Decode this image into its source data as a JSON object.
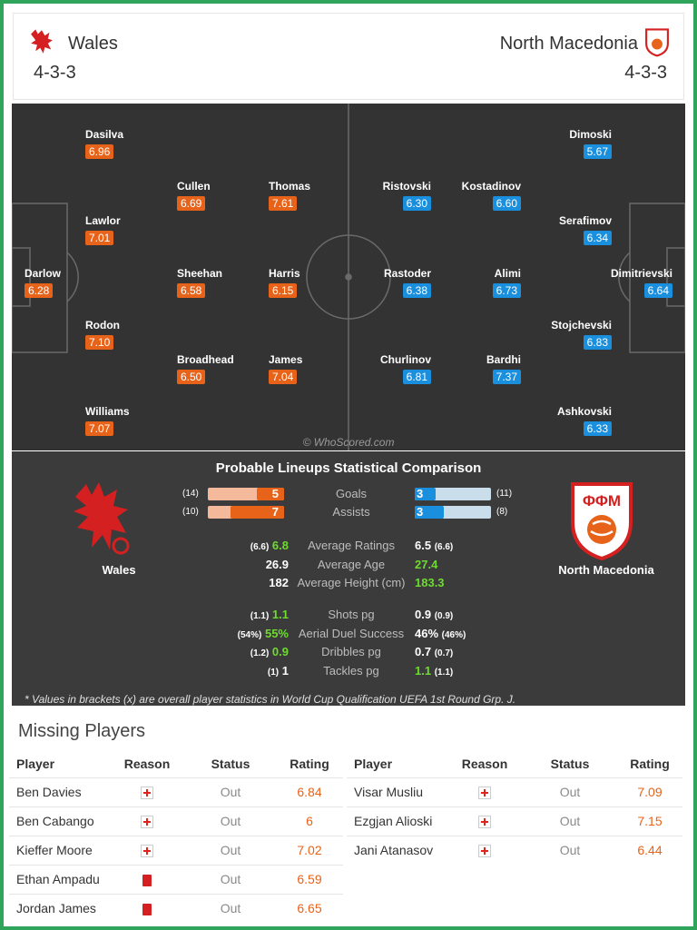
{
  "header": {
    "home": {
      "name": "Wales",
      "formation": "4-3-3"
    },
    "away": {
      "name": "North Macedonia",
      "formation": "4-3-3"
    }
  },
  "pitch": {
    "watermark": "© WhoScored.com",
    "home_players": [
      {
        "name": "Dasilva",
        "rating": "6.96"
      },
      {
        "name": "Cullen",
        "rating": "6.69"
      },
      {
        "name": "Thomas",
        "rating": "7.61"
      },
      {
        "name": "Lawlor",
        "rating": "7.01"
      },
      {
        "name": "Darlow",
        "rating": "6.28"
      },
      {
        "name": "Sheehan",
        "rating": "6.58"
      },
      {
        "name": "Harris",
        "rating": "6.15"
      },
      {
        "name": "Rodon",
        "rating": "7.10"
      },
      {
        "name": "Broadhead",
        "rating": "6.50"
      },
      {
        "name": "James",
        "rating": "7.04"
      },
      {
        "name": "Williams",
        "rating": "7.07"
      }
    ],
    "away_players": [
      {
        "name": "Dimoski",
        "rating": "5.67"
      },
      {
        "name": "Ristovski",
        "rating": "6.30"
      },
      {
        "name": "Kostadinov",
        "rating": "6.60"
      },
      {
        "name": "Serafimov",
        "rating": "6.34"
      },
      {
        "name": "Rastoder",
        "rating": "6.38"
      },
      {
        "name": "Alimi",
        "rating": "6.73"
      },
      {
        "name": "Dimitrievski",
        "rating": "6.64"
      },
      {
        "name": "Stojchevski",
        "rating": "6.83"
      },
      {
        "name": "Churlinov",
        "rating": "6.81"
      },
      {
        "name": "Bardhi",
        "rating": "7.37"
      },
      {
        "name": "Ashkovski",
        "rating": "6.33"
      }
    ]
  },
  "comparison": {
    "title": "Probable Lineups Statistical Comparison",
    "home_team": "Wales",
    "away_team": "North Macedonia",
    "away_crest_text": "ΦΦΜ",
    "bars": [
      {
        "label": "Goals",
        "home": "5",
        "home_overall": "(14)",
        "away": "3",
        "away_overall": "(11)",
        "home_fraction": 0.357,
        "away_fraction": 0.273
      },
      {
        "label": "Assists",
        "home": "7",
        "home_overall": "(10)",
        "away": "3",
        "away_overall": "(8)",
        "home_fraction": 0.7,
        "away_fraction": 0.375
      }
    ],
    "stats_a": [
      {
        "label": "Average Ratings",
        "home_overall": "(6.6)",
        "home": "6.8",
        "away": "6.5",
        "away_overall": "(6.6)",
        "better": "home"
      },
      {
        "label": "Average Age",
        "home_overall": "",
        "home": "26.9",
        "away": "27.4",
        "away_overall": "",
        "better": "away"
      },
      {
        "label": "Average Height (cm)",
        "home_overall": "",
        "home": "182",
        "away": "183.3",
        "away_overall": "",
        "better": "away"
      }
    ],
    "stats_b": [
      {
        "label": "Shots pg",
        "home_overall": "(1.1)",
        "home": "1.1",
        "away": "0.9",
        "away_overall": "(0.9)",
        "better": "home"
      },
      {
        "label": "Aerial Duel Success",
        "home_overall": "(54%)",
        "home": "55%",
        "away": "46%",
        "away_overall": "(46%)",
        "better": "home"
      },
      {
        "label": "Dribbles pg",
        "home_overall": "(1.2)",
        "home": "0.9",
        "away": "0.7",
        "away_overall": "(0.7)",
        "better": "home"
      },
      {
        "label": "Tackles pg",
        "home_overall": "(1)",
        "home": "1",
        "away": "1.1",
        "away_overall": "(1.1)",
        "better": "away"
      }
    ],
    "footnote": "* Values in brackets (x) are overall player statistics in World Cup Qualification UEFA 1st Round Grp. J."
  },
  "missing": {
    "title": "Missing Players",
    "columns": [
      "Player",
      "Reason",
      "Status",
      "Rating"
    ],
    "home": [
      {
        "player": "Ben Davies",
        "reason": "injury",
        "status": "Out",
        "rating": "6.84"
      },
      {
        "player": "Ben Cabango",
        "reason": "injury",
        "status": "Out",
        "rating": "6"
      },
      {
        "player": "Kieffer Moore",
        "reason": "injury",
        "status": "Out",
        "rating": "7.02"
      },
      {
        "player": "Ethan Ampadu",
        "reason": "red-card",
        "status": "Out",
        "rating": "6.59"
      },
      {
        "player": "Jordan James",
        "reason": "red-card",
        "status": "Out",
        "rating": "6.65"
      }
    ],
    "away": [
      {
        "player": "Visar Musliu",
        "reason": "injury",
        "status": "Out",
        "rating": "7.09"
      },
      {
        "player": "Ezgjan Alioski",
        "reason": "injury",
        "status": "Out",
        "rating": "7.15"
      },
      {
        "player": "Jani Atanasov",
        "reason": "injury",
        "status": "Out",
        "rating": "6.44"
      }
    ]
  },
  "colors": {
    "frame": "#2ea55a",
    "home_rating": "#e8631a",
    "away_rating": "#1a8fdd",
    "pitch": "#333333",
    "better_stat": "#6edb2f",
    "injury_cross": "#e0241b",
    "red_card": "#d42020"
  }
}
